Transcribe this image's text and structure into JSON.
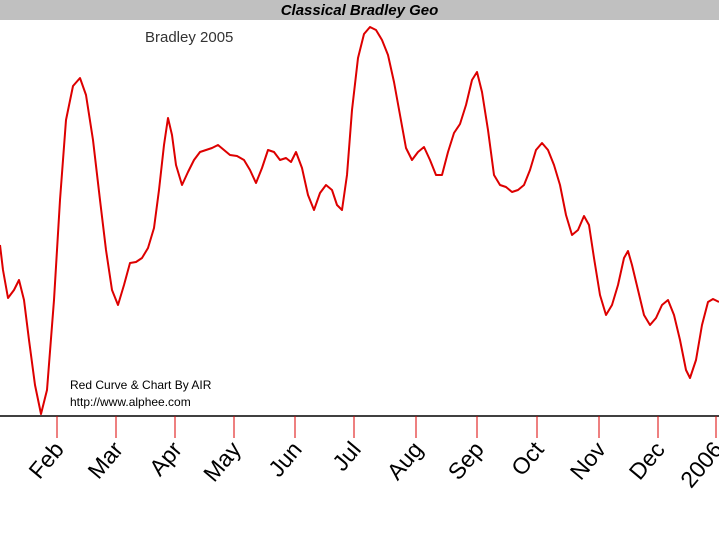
{
  "chart_data": {
    "type": "line",
    "title": "Classical Bradley Geo",
    "series_label": "Bradley 2005",
    "credit_line1": "Red Curve & Chart By AIR",
    "credit_line2": "http://www.alphee.com",
    "line_color": "#dd0000",
    "title_bar_color": "#c0c0c0",
    "grid": false,
    "x_tick_labels": [
      "Feb",
      "Mar",
      "Apr",
      "May",
      "Jun",
      "Jul",
      "Aug",
      "Sep",
      "Oct",
      "Nov",
      "Dec",
      "2006"
    ],
    "series": [
      {
        "values": [
          [
            0,
            245
          ],
          [
            3,
            270
          ],
          [
            8,
            298
          ],
          [
            14,
            290
          ],
          [
            19,
            280
          ],
          [
            24,
            300
          ],
          [
            29,
            340
          ],
          [
            35,
            385
          ],
          [
            41,
            414
          ],
          [
            47,
            390
          ],
          [
            54,
            300
          ],
          [
            60,
            200
          ],
          [
            66,
            120
          ],
          [
            73,
            86
          ],
          [
            80,
            78
          ],
          [
            86,
            95
          ],
          [
            93,
            140
          ],
          [
            100,
            200
          ],
          [
            106,
            250
          ],
          [
            112,
            290
          ],
          [
            118,
            305
          ],
          [
            124,
            285
          ],
          [
            130,
            263
          ],
          [
            136,
            262
          ],
          [
            142,
            258
          ],
          [
            148,
            248
          ],
          [
            154,
            228
          ],
          [
            159,
            190
          ],
          [
            164,
            145
          ],
          [
            168,
            118
          ],
          [
            172,
            135
          ],
          [
            176,
            165
          ],
          [
            182,
            185
          ],
          [
            188,
            172
          ],
          [
            194,
            160
          ],
          [
            200,
            152
          ],
          [
            206,
            150
          ],
          [
            212,
            148
          ],
          [
            218,
            145
          ],
          [
            224,
            150
          ],
          [
            230,
            155
          ],
          [
            237,
            156
          ],
          [
            244,
            160
          ],
          [
            250,
            170
          ],
          [
            256,
            183
          ],
          [
            262,
            168
          ],
          [
            268,
            150
          ],
          [
            274,
            152
          ],
          [
            280,
            160
          ],
          [
            286,
            158
          ],
          [
            291,
            162
          ],
          [
            296,
            152
          ],
          [
            302,
            168
          ],
          [
            308,
            195
          ],
          [
            314,
            210
          ],
          [
            320,
            193
          ],
          [
            326,
            185
          ],
          [
            332,
            190
          ],
          [
            337,
            205
          ],
          [
            342,
            210
          ],
          [
            347,
            175
          ],
          [
            352,
            110
          ],
          [
            358,
            58
          ],
          [
            364,
            34
          ],
          [
            370,
            27
          ],
          [
            376,
            30
          ],
          [
            382,
            40
          ],
          [
            388,
            55
          ],
          [
            394,
            82
          ],
          [
            400,
            115
          ],
          [
            406,
            148
          ],
          [
            412,
            160
          ],
          [
            418,
            152
          ],
          [
            424,
            147
          ],
          [
            430,
            160
          ],
          [
            436,
            175
          ],
          [
            442,
            175
          ],
          [
            448,
            152
          ],
          [
            454,
            133
          ],
          [
            460,
            124
          ],
          [
            466,
            105
          ],
          [
            472,
            80
          ],
          [
            477,
            72
          ],
          [
            482,
            92
          ],
          [
            488,
            130
          ],
          [
            494,
            175
          ],
          [
            500,
            185
          ],
          [
            506,
            187
          ],
          [
            512,
            192
          ],
          [
            518,
            190
          ],
          [
            524,
            185
          ],
          [
            530,
            170
          ],
          [
            536,
            150
          ],
          [
            542,
            143
          ],
          [
            548,
            150
          ],
          [
            554,
            165
          ],
          [
            560,
            185
          ],
          [
            566,
            215
          ],
          [
            572,
            235
          ],
          [
            578,
            230
          ],
          [
            584,
            216
          ],
          [
            589,
            225
          ],
          [
            594,
            258
          ],
          [
            600,
            295
          ],
          [
            606,
            315
          ],
          [
            612,
            305
          ],
          [
            618,
            285
          ],
          [
            624,
            258
          ],
          [
            628,
            251
          ],
          [
            632,
            265
          ],
          [
            638,
            290
          ],
          [
            644,
            315
          ],
          [
            650,
            325
          ],
          [
            656,
            318
          ],
          [
            662,
            305
          ],
          [
            668,
            300
          ],
          [
            674,
            315
          ],
          [
            680,
            340
          ],
          [
            686,
            370
          ],
          [
            690,
            378
          ],
          [
            696,
            360
          ],
          [
            702,
            325
          ],
          [
            708,
            302
          ],
          [
            713,
            299
          ],
          [
            719,
            302
          ]
        ]
      }
    ]
  }
}
